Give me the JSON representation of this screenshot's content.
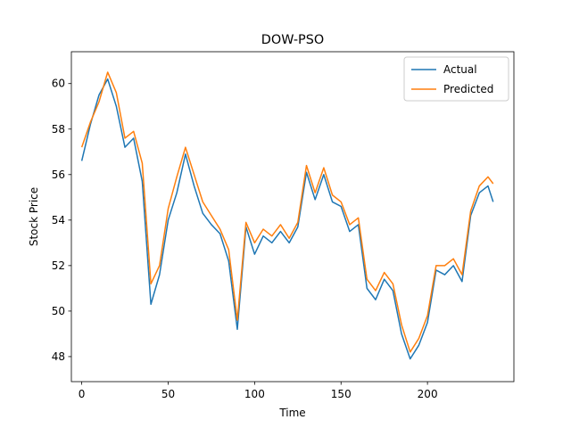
{
  "chart_data": {
    "type": "line",
    "title": "DOW-PSO",
    "xlabel": "Time",
    "ylabel": "Stock Price",
    "xlim": [
      -6,
      250
    ],
    "ylim": [
      46.9,
      61.4
    ],
    "xticks": [
      0,
      50,
      100,
      150,
      200
    ],
    "yticks": [
      48,
      50,
      52,
      54,
      56,
      58,
      60
    ],
    "grid": false,
    "legend": "top-right",
    "x": [
      0,
      5,
      10,
      15,
      20,
      25,
      30,
      35,
      40,
      45,
      50,
      55,
      60,
      65,
      70,
      75,
      80,
      85,
      90,
      95,
      100,
      105,
      110,
      115,
      120,
      125,
      130,
      135,
      140,
      145,
      150,
      155,
      160,
      165,
      170,
      175,
      180,
      185,
      190,
      195,
      200,
      205,
      210,
      215,
      220,
      225,
      230,
      235,
      238
    ],
    "series": [
      {
        "name": "Actual",
        "color": "#1f77b4",
        "values": [
          56.6,
          58.2,
          59.5,
          60.2,
          59.0,
          57.2,
          57.6,
          55.7,
          50.3,
          51.6,
          54.0,
          55.2,
          56.9,
          55.5,
          54.3,
          53.8,
          53.4,
          52.2,
          49.2,
          53.7,
          52.5,
          53.3,
          53.0,
          53.5,
          53.0,
          53.7,
          56.1,
          54.9,
          56.0,
          54.8,
          54.6,
          53.5,
          53.8,
          51.0,
          50.5,
          51.4,
          50.9,
          49.0,
          47.9,
          48.5,
          49.5,
          51.8,
          51.6,
          52.0,
          51.3,
          54.2,
          55.2,
          55.5,
          54.8
        ]
      },
      {
        "name": "Predicted",
        "color": "#ff7f0e",
        "values": [
          57.2,
          58.3,
          59.2,
          60.5,
          59.6,
          57.6,
          57.9,
          56.5,
          51.2,
          52.0,
          54.5,
          55.9,
          57.2,
          56.0,
          54.8,
          54.2,
          53.6,
          52.7,
          49.6,
          53.9,
          53.0,
          53.6,
          53.3,
          53.8,
          53.2,
          53.9,
          56.4,
          55.2,
          56.3,
          55.1,
          54.8,
          53.8,
          54.1,
          51.4,
          50.9,
          51.7,
          51.2,
          49.4,
          48.2,
          48.8,
          49.8,
          52.0,
          52.0,
          52.3,
          51.6,
          54.4,
          55.5,
          55.9,
          55.6
        ]
      }
    ]
  }
}
